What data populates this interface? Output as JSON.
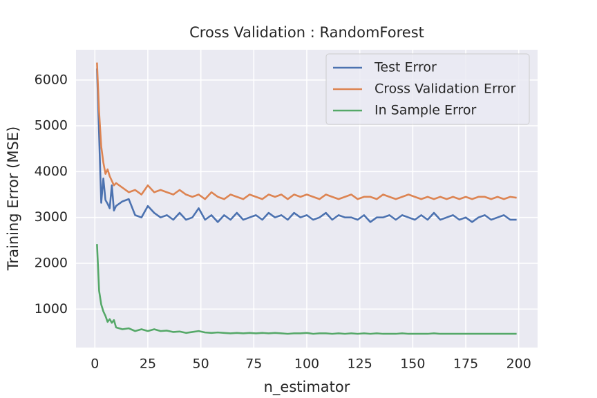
{
  "chart_data": {
    "type": "line",
    "title": "Cross Validation : RandomForest",
    "xlabel": "n_estimator",
    "ylabel": "Training Error (MSE)",
    "x": [
      1,
      2,
      3,
      4,
      5,
      6,
      7,
      8,
      9,
      10,
      13,
      16,
      19,
      22,
      25,
      28,
      31,
      34,
      37,
      40,
      43,
      46,
      49,
      52,
      55,
      58,
      61,
      64,
      67,
      70,
      73,
      76,
      79,
      82,
      85,
      88,
      91,
      94,
      97,
      100,
      103,
      106,
      109,
      112,
      115,
      118,
      121,
      124,
      127,
      130,
      133,
      136,
      139,
      142,
      145,
      148,
      151,
      154,
      157,
      160,
      163,
      166,
      169,
      172,
      175,
      178,
      181,
      184,
      187,
      190,
      193,
      196,
      199
    ],
    "series": [
      {
        "name": "Test Error",
        "color": "#4c72b0",
        "values": [
          6250,
          4800,
          3320,
          3850,
          3380,
          3300,
          3200,
          3700,
          3150,
          3250,
          3350,
          3400,
          3050,
          3000,
          3250,
          3100,
          3000,
          3050,
          2950,
          3100,
          2950,
          3000,
          3200,
          2950,
          3050,
          2900,
          3050,
          2950,
          3100,
          2950,
          3000,
          3050,
          2950,
          3100,
          3000,
          3050,
          2950,
          3100,
          3000,
          3050,
          2950,
          3000,
          3100,
          2950,
          3050,
          3000,
          3000,
          2950,
          3050,
          2900,
          3000,
          3000,
          3050,
          2950,
          3050,
          3000,
          2950,
          3050,
          2950,
          3100,
          2950,
          3000,
          3050,
          2950,
          3000,
          2900,
          3000,
          3050,
          2950,
          3000,
          3050,
          2950,
          2950
        ]
      },
      {
        "name": "Cross Validation Error",
        "color": "#dd8452",
        "values": [
          6380,
          5300,
          4550,
          4200,
          3950,
          4050,
          3900,
          3800,
          3700,
          3750,
          3650,
          3550,
          3600,
          3500,
          3700,
          3550,
          3600,
          3550,
          3500,
          3600,
          3500,
          3450,
          3500,
          3400,
          3550,
          3450,
          3400,
          3500,
          3450,
          3400,
          3500,
          3450,
          3400,
          3500,
          3450,
          3500,
          3400,
          3500,
          3450,
          3500,
          3450,
          3400,
          3500,
          3450,
          3400,
          3450,
          3500,
          3400,
          3450,
          3450,
          3400,
          3500,
          3450,
          3400,
          3450,
          3500,
          3450,
          3400,
          3450,
          3400,
          3450,
          3400,
          3450,
          3400,
          3450,
          3400,
          3450,
          3450,
          3400,
          3450,
          3400,
          3450,
          3430
        ]
      },
      {
        "name": "In Sample Error",
        "color": "#55a868",
        "values": [
          2420,
          1400,
          1100,
          950,
          850,
          720,
          780,
          700,
          760,
          600,
          560,
          580,
          520,
          560,
          520,
          560,
          520,
          530,
          500,
          510,
          480,
          500,
          520,
          490,
          480,
          490,
          480,
          470,
          480,
          470,
          480,
          470,
          480,
          470,
          480,
          470,
          460,
          470,
          470,
          480,
          460,
          470,
          470,
          460,
          470,
          460,
          470,
          460,
          470,
          460,
          470,
          460,
          460,
          460,
          470,
          460,
          460,
          460,
          460,
          470,
          460,
          460,
          460,
          460,
          460,
          460,
          460,
          460,
          460,
          460,
          460,
          460,
          460
        ]
      }
    ],
    "xlim": [
      -8.9,
      208.9
    ],
    "ylim": [
      160,
      6660
    ],
    "xticks": [
      0,
      25,
      50,
      75,
      100,
      125,
      150,
      175,
      200
    ],
    "yticks": [
      1000,
      2000,
      3000,
      4000,
      5000,
      6000
    ],
    "grid": true,
    "legend": "upper right"
  }
}
